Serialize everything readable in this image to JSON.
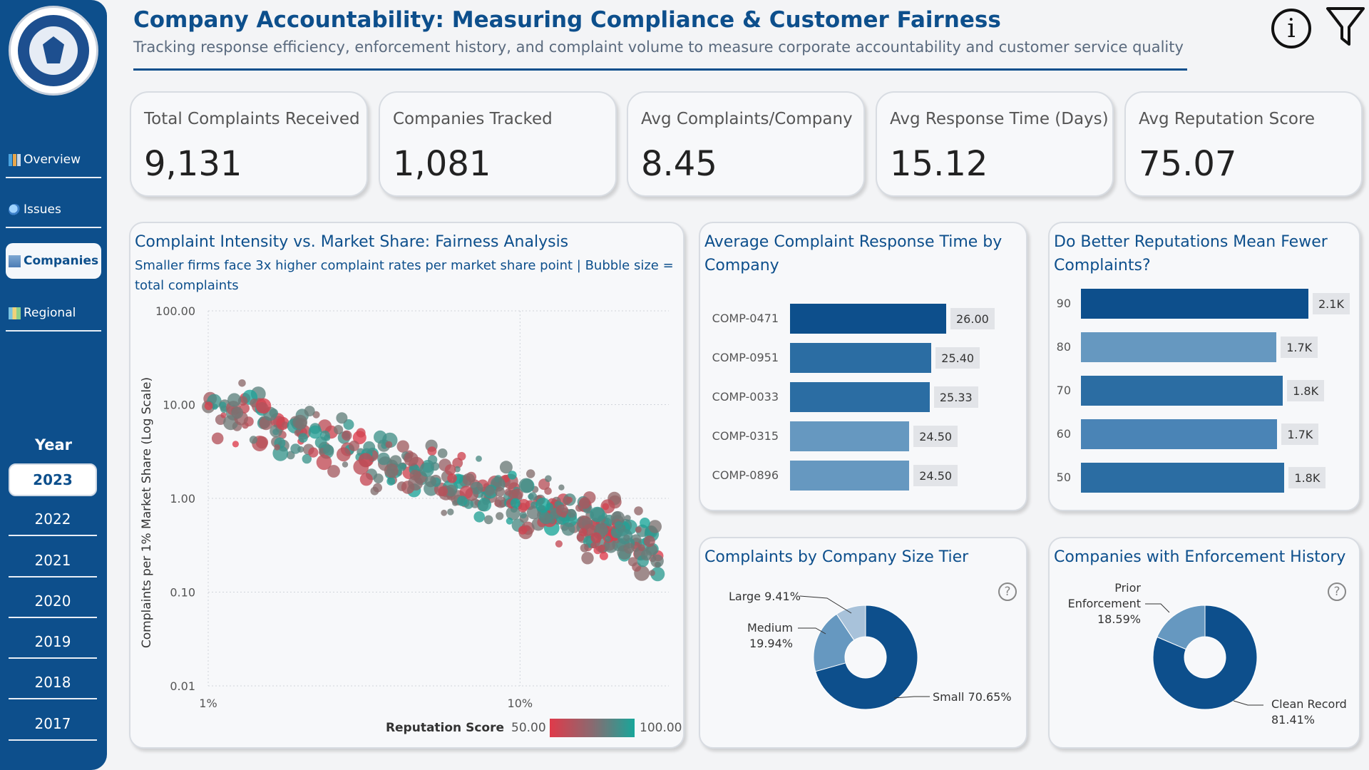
{
  "header": {
    "title": "Company Accountability: Measuring Compliance & Customer Fairness",
    "subtitle": "Tracking response efficiency, enforcement history, and complaint volume to measure corporate accountability and customer service quality"
  },
  "icons": {
    "info": "i"
  },
  "nav": {
    "items": [
      {
        "label": "Overview",
        "icon": "chart-icon",
        "active": false
      },
      {
        "label": "Issues",
        "icon": "search-icon",
        "active": false
      },
      {
        "label": "Companies",
        "icon": "building-icon",
        "active": true
      },
      {
        "label": "Regional",
        "icon": "map-icon",
        "active": false
      }
    ]
  },
  "year_filter": {
    "label": "Year",
    "years": [
      "2023",
      "2022",
      "2021",
      "2020",
      "2019",
      "2018",
      "2017"
    ],
    "selected": "2023"
  },
  "kpis": [
    {
      "label": "Total Complaints Received",
      "value": "9,131"
    },
    {
      "label": "Companies Tracked",
      "value": "1,081"
    },
    {
      "label": "Avg Complaints/Company",
      "value": "8.45"
    },
    {
      "label": "Avg Response Time (Days)",
      "value": "15.12"
    },
    {
      "label": "Avg Reputation Score",
      "value": "75.07"
    }
  ],
  "scatter": {
    "title": "Complaint Intensity vs. Market Share: Fairness Analysis",
    "subtitle_line1": "Smaller firms face 3x higher complaint rates per market share point | Bubble size =",
    "subtitle_line2": "total complaints",
    "ylabel": "Complaints per 1% Market Share (Log Scale)",
    "y_ticks": [
      "100.00",
      "10.00",
      "1.00",
      "0.10",
      "0.01"
    ],
    "x_ticks": [
      "1%",
      "10%"
    ],
    "legend_title": "Reputation Score",
    "legend_min": "50.00",
    "legend_max": "100.00",
    "color_low": "#e03a4a",
    "color_high": "#18a69a"
  },
  "response_time": {
    "title_line1": "Average Complaint Response Time by",
    "title_line2": "Company",
    "rows": [
      {
        "company": "COMP-0471",
        "value": 26.0,
        "label": "26.00",
        "color": "#0d4f8c"
      },
      {
        "company": "COMP-0951",
        "value": 25.4,
        "label": "25.40",
        "color": "#2b6da3"
      },
      {
        "company": "COMP-0033",
        "value": 25.33,
        "label": "25.33",
        "color": "#2b6da3"
      },
      {
        "company": "COMP-0315",
        "value": 24.5,
        "label": "24.50",
        "color": "#6698c0"
      },
      {
        "company": "COMP-0896",
        "value": 24.5,
        "label": "24.50",
        "color": "#6698c0"
      }
    ]
  },
  "reputation": {
    "title_line1": "Do Better Reputations Mean Fewer",
    "title_line2": "Complaints?",
    "rows": [
      {
        "score": "90",
        "value": 2100,
        "label": "2.1K",
        "color": "#0d4f8c"
      },
      {
        "score": "80",
        "value": 1700,
        "label": "1.7K",
        "color": "#6698c0"
      },
      {
        "score": "70",
        "value": 1780,
        "label": "1.8K",
        "color": "#2b6da3"
      },
      {
        "score": "60",
        "value": 1710,
        "label": "1.7K",
        "color": "#4a84b6"
      },
      {
        "score": "50",
        "value": 1800,
        "label": "1.8K",
        "color": "#2b6da3"
      }
    ]
  },
  "size_tier": {
    "title": "Complaints by Company Size Tier",
    "slices": [
      {
        "name": "Small",
        "pct": 70.65,
        "label": "Small 70.65%",
        "color": "#0d4f8c"
      },
      {
        "name": "Medium",
        "pct": 19.94,
        "label_line1": "Medium",
        "label_line2": "19.94%",
        "color": "#6698c0"
      },
      {
        "name": "Large",
        "pct": 9.41,
        "label": "Large 9.41%",
        "color": "#a8c2da"
      }
    ]
  },
  "enforcement": {
    "title": "Companies with Enforcement History",
    "slices": [
      {
        "name": "Clean Record",
        "pct": 81.41,
        "label_line1": "Clean Record",
        "label_line2": "81.41%",
        "color": "#0d4f8c"
      },
      {
        "name": "Prior Enforcement",
        "pct": 18.59,
        "label_line1": "Prior",
        "label_line2": "Enforcement",
        "label_line3": "18.59%",
        "color": "#6698c0"
      }
    ]
  },
  "chart_data": [
    {
      "type": "scatter",
      "title": "Complaint Intensity vs. Market Share: Fairness Analysis",
      "xlabel": "",
      "ylabel": "Complaints per 1% Market Share (Log Scale)",
      "x_scale": "log",
      "y_scale": "log",
      "xlim": [
        1,
        30
      ],
      "ylim": [
        0.01,
        100
      ],
      "color_by": "Reputation Score",
      "color_range": [
        50,
        100
      ],
      "trend": {
        "x_start": 1.0,
        "y_start": 10.0,
        "slope_log": -1.05
      },
      "n_points": 420,
      "grid": true
    },
    {
      "type": "bar",
      "orientation": "horizontal",
      "title": "Average Complaint Response Time by Company",
      "categories": [
        "COMP-0471",
        "COMP-0951",
        "COMP-0033",
        "COMP-0315",
        "COMP-0896"
      ],
      "values": [
        26.0,
        25.4,
        25.33,
        24.5,
        24.5
      ]
    },
    {
      "type": "bar",
      "orientation": "horizontal",
      "title": "Do Better Reputations Mean Fewer Complaints?",
      "categories": [
        "90",
        "80",
        "70",
        "60",
        "50"
      ],
      "values": [
        2100,
        1700,
        1780,
        1710,
        1800
      ]
    },
    {
      "type": "pie",
      "title": "Complaints by Company Size Tier",
      "categories": [
        "Small",
        "Medium",
        "Large"
      ],
      "values": [
        70.65,
        19.94,
        9.41
      ]
    },
    {
      "type": "pie",
      "title": "Companies with Enforcement History",
      "categories": [
        "Clean Record",
        "Prior Enforcement"
      ],
      "values": [
        81.41,
        18.59
      ]
    }
  ]
}
